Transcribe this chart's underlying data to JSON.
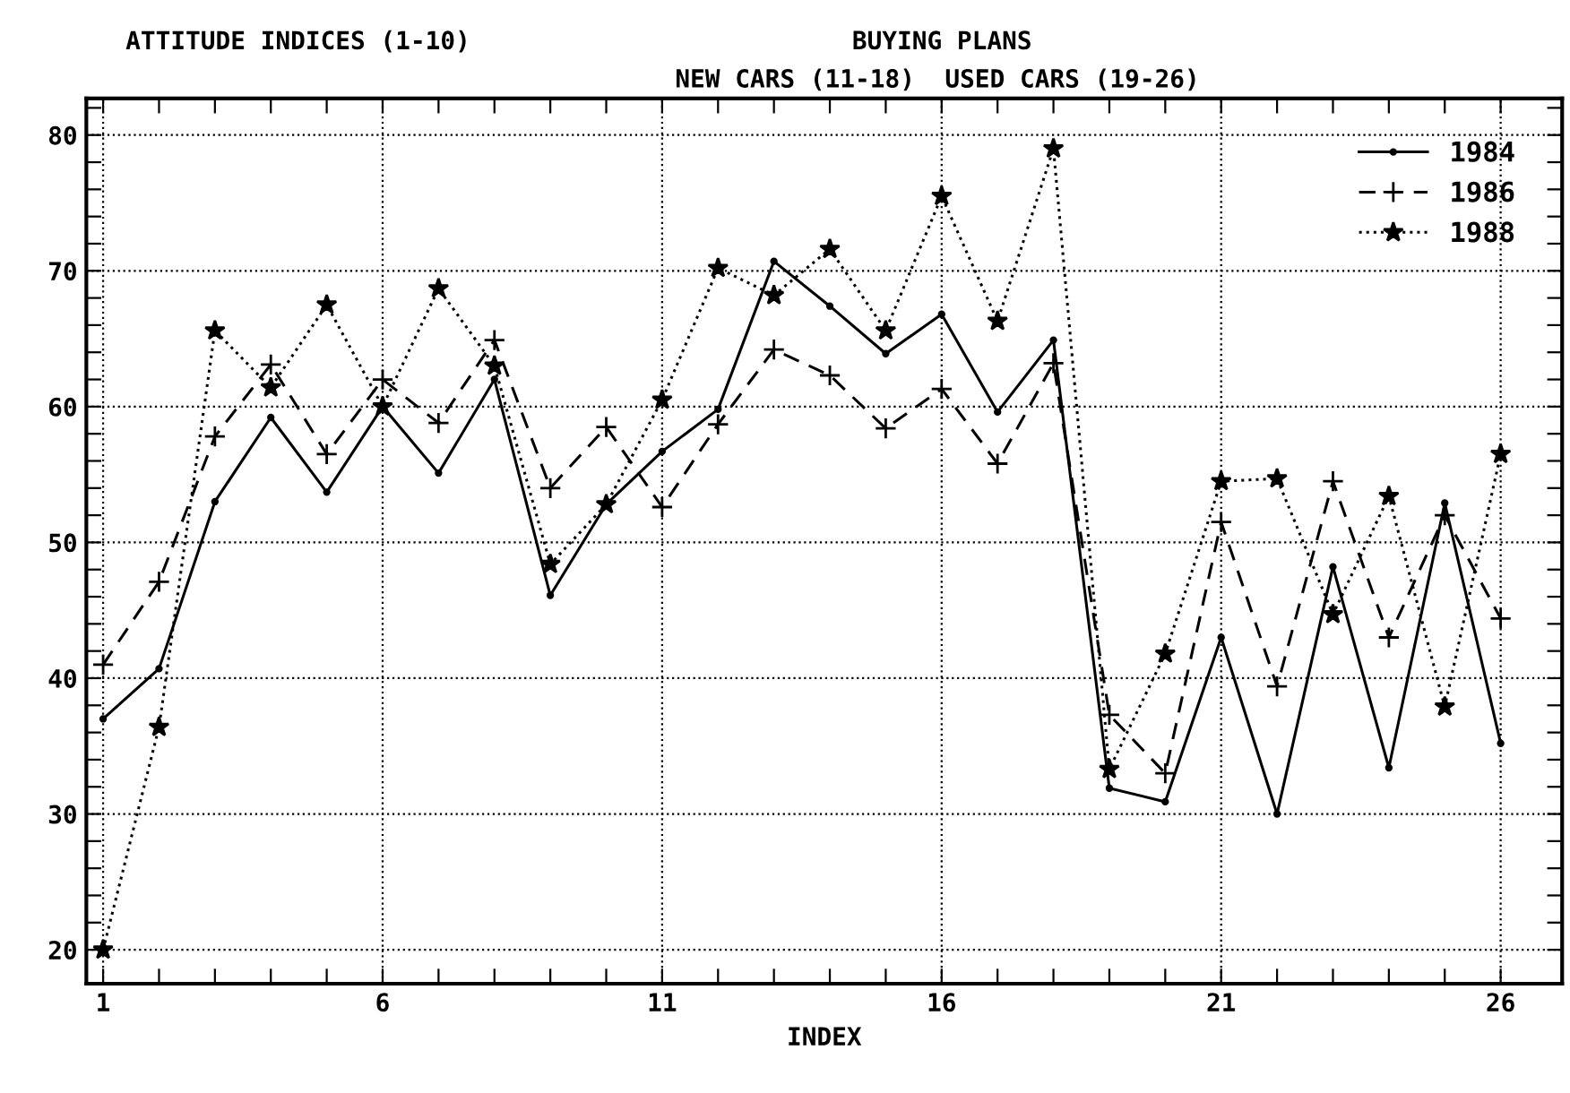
{
  "chart_data": {
    "type": "line",
    "title": "BUYING PLANS",
    "xlabel": "INDEX",
    "annotations": [
      "ATTITUDE INDICES (1-10)",
      "NEW CARS (11-18)  USED CARS (19-26)"
    ],
    "x": [
      1,
      2,
      3,
      4,
      5,
      6,
      7,
      8,
      9,
      10,
      11,
      12,
      13,
      14,
      15,
      16,
      17,
      18,
      19,
      20,
      21,
      22,
      23,
      24,
      25,
      26
    ],
    "series": [
      {
        "name": "1984",
        "color": "#000000",
        "line_style": "solid",
        "marker": "circle",
        "values": [
          37,
          40.7,
          53,
          59.2,
          53.7,
          60,
          55.1,
          62,
          46.1,
          52.8,
          56.7,
          59.8,
          70.7,
          67.4,
          63.9,
          66.8,
          59.6,
          64.9,
          31.9,
          30.9,
          43,
          30,
          48.2,
          33.4,
          52.9,
          35.2
        ]
      },
      {
        "name": "1986",
        "color": "#000000",
        "line_style": "dashed",
        "marker": "cross",
        "values": [
          41,
          47.1,
          57.8,
          63.1,
          56.5,
          62,
          58.8,
          64.9,
          54,
          58.5,
          52.6,
          58.7,
          64.2,
          62.3,
          58.4,
          61.3,
          55.8,
          63.2,
          37.3,
          33,
          51.5,
          39.4,
          54.5,
          43,
          52,
          44.4
        ]
      },
      {
        "name": "1988",
        "color": "#000000",
        "line_style": "dotted",
        "marker": "star",
        "values": [
          20,
          36.4,
          65.6,
          61.4,
          67.5,
          60,
          68.7,
          63,
          48.4,
          52.8,
          60.5,
          70.2,
          68.2,
          71.6,
          65.6,
          75.5,
          66.3,
          79,
          33.3,
          41.8,
          54.5,
          54.7,
          44.7,
          53.4,
          37.9,
          56.5
        ]
      }
    ],
    "xlim": [
      0.7,
      27.1
    ],
    "ylim": [
      17.5,
      82.7
    ],
    "xticks": [
      1,
      {
        "value": 2,
        "label": null
      },
      {
        "value": 3,
        "label": null
      },
      {
        "value": 4,
        "label": null
      },
      {
        "value": 5,
        "label": null
      },
      6,
      {
        "value": 7,
        "label": null
      },
      {
        "value": 8,
        "label": null
      },
      {
        "value": 9,
        "label": null
      },
      {
        "value": 10,
        "label": null
      },
      11,
      {
        "value": 12,
        "label": null
      },
      {
        "value": 13,
        "label": null
      },
      {
        "value": 14,
        "label": null
      },
      {
        "value": 15,
        "label": null
      },
      16,
      {
        "value": 17,
        "label": null
      },
      {
        "value": 18,
        "label": null
      },
      {
        "value": 19,
        "label": null
      },
      {
        "value": 20,
        "label": null
      },
      21,
      {
        "value": 22,
        "label": null
      },
      {
        "value": 23,
        "label": null
      },
      {
        "value": 24,
        "label": null
      },
      {
        "value": 25,
        "label": null
      },
      26
    ],
    "yticks": [
      20,
      {
        "value": 22,
        "label": null
      },
      {
        "value": 24,
        "label": null
      },
      {
        "value": 26,
        "label": null
      },
      {
        "value": 28,
        "label": null
      },
      30,
      {
        "value": 32,
        "label": null
      },
      {
        "value": 34,
        "label": null
      },
      {
        "value": 36,
        "label": null
      },
      {
        "value": 38,
        "label": null
      },
      40,
      {
        "value": 42,
        "label": null
      },
      {
        "value": 44,
        "label": null
      },
      {
        "value": 46,
        "label": null
      },
      {
        "value": 48,
        "label": null
      },
      50,
      {
        "value": 52,
        "label": null
      },
      {
        "value": 54,
        "label": null
      },
      {
        "value": 56,
        "label": null
      },
      {
        "value": 58,
        "label": null
      },
      60,
      {
        "value": 62,
        "label": null
      },
      {
        "value": 64,
        "label": null
      },
      {
        "value": 66,
        "label": null
      },
      {
        "value": 68,
        "label": null
      },
      70,
      {
        "value": 72,
        "label": null
      },
      {
        "value": 74,
        "label": null
      },
      {
        "value": 76,
        "label": null
      },
      {
        "value": 78,
        "label": null
      },
      80,
      {
        "value": 82,
        "label": null
      }
    ],
    "grid": true,
    "legend": "top right"
  }
}
